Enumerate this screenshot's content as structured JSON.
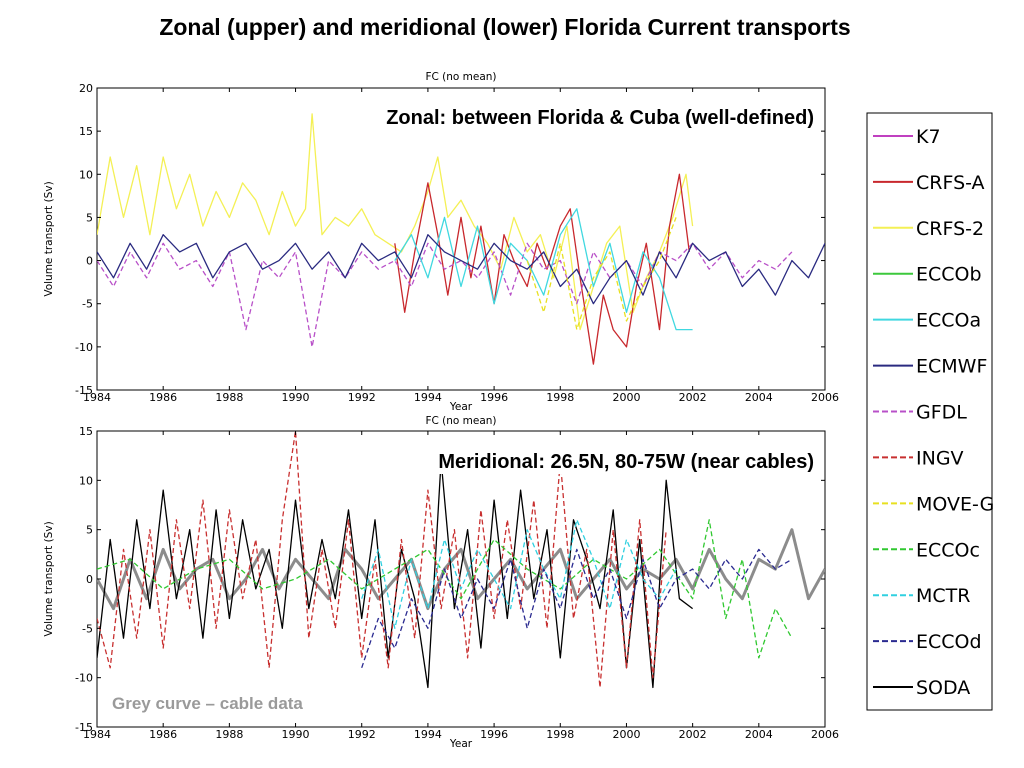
{
  "slide_title": "Zonal (upper) and meridional (lower) Florida Current transports",
  "legend": {
    "entries": [
      {
        "name": "K7",
        "color": "#c040c0",
        "dash": "solid"
      },
      {
        "name": "CRFS-A",
        "color": "#c8282d",
        "dash": "solid"
      },
      {
        "name": "CRFS-2",
        "color": "#f4f055",
        "dash": "solid"
      },
      {
        "name": "ECCOb",
        "color": "#3cc83c",
        "dash": "solid"
      },
      {
        "name": "ECCOa",
        "color": "#40d8e0",
        "dash": "solid"
      },
      {
        "name": "ECMWF",
        "color": "#2a2a80",
        "dash": "solid"
      },
      {
        "name": "GFDL",
        "color": "#b850c8",
        "dash": "dashed"
      },
      {
        "name": "INGV",
        "color": "#c83030",
        "dash": "dashed"
      },
      {
        "name": "MOVE-G",
        "color": "#e8e020",
        "dash": "dashed"
      },
      {
        "name": "ECCOc",
        "color": "#30c830",
        "dash": "dashed"
      },
      {
        "name": "MCTR",
        "color": "#30d0e0",
        "dash": "dashed"
      },
      {
        "name": "ECCOd",
        "color": "#2a2a90",
        "dash": "dashed"
      },
      {
        "name": "SODA",
        "color": "#000000",
        "dash": "solid"
      }
    ]
  },
  "chart_data": [
    {
      "type": "line",
      "title": "FC (no   mean)",
      "annotation": "Zonal: between Florida & Cuba (well-defined)",
      "xlabel": "Year",
      "ylabel": "Volume transport (Sv)",
      "xlim": [
        1984,
        2006
      ],
      "ylim": [
        -15,
        20
      ],
      "xticks": [
        "1984",
        "1986",
        "1988",
        "1990",
        "1992",
        "1994",
        "1996",
        "1998",
        "2000",
        "2002",
        "2004",
        "2006"
      ],
      "yticks": [
        "-15",
        "-10",
        "-5",
        "0",
        "5",
        "10",
        "15",
        "20"
      ],
      "grid": false,
      "series": [
        {
          "name": "CRFS-2",
          "x": [
            1984.0,
            1984.4,
            1984.8,
            1985.2,
            1985.6,
            1986.0,
            1986.4,
            1986.8,
            1987.2,
            1987.6,
            1988.0,
            1988.4,
            1988.8,
            1989.2,
            1989.6,
            1990.0,
            1990.3,
            1990.5,
            1990.8,
            1991.2,
            1991.6,
            1992.0,
            1992.4,
            1992.8,
            1993.2,
            1993.6,
            1994.0,
            1994.3,
            1994.6,
            1995.0,
            1995.4,
            1995.8,
            1996.2,
            1996.6,
            1997.0,
            1997.4,
            1997.8,
            1998.2,
            1998.6,
            1999.0,
            1999.4,
            1999.8,
            2000.2,
            2000.6,
            2001.0,
            2001.4,
            2001.8,
            2002.0
          ],
          "values": [
            3,
            12,
            5,
            11,
            3,
            12,
            6,
            10,
            4,
            8,
            5,
            9,
            7,
            3,
            8,
            4,
            6,
            17,
            3,
            5,
            4,
            6,
            3,
            2,
            1,
            4,
            8,
            12,
            5,
            7,
            4,
            2,
            -1,
            5,
            1,
            3,
            -2,
            4,
            -8,
            -3,
            2,
            4,
            -6,
            -2,
            1,
            5,
            10,
            4
          ]
        },
        {
          "name": "CRFS-A",
          "x": [
            1993.0,
            1993.3,
            1993.6,
            1994.0,
            1994.3,
            1994.6,
            1995.0,
            1995.3,
            1995.6,
            1996.0,
            1996.3,
            1996.6,
            1997.0,
            1997.3,
            1997.6,
            1998.0,
            1998.3,
            1998.6,
            1999.0,
            1999.3,
            1999.6,
            2000.0,
            2000.3,
            2000.6,
            2001.0,
            2001.3,
            2001.6,
            2001.9
          ],
          "values": [
            2,
            -6,
            1,
            9,
            3,
            -4,
            5,
            -2,
            4,
            -5,
            3,
            0,
            -3,
            2,
            -1,
            4,
            6,
            -2,
            -12,
            -4,
            -8,
            -10,
            -3,
            2,
            -8,
            4,
            10,
            1
          ]
        },
        {
          "name": "GFDL",
          "x": [
            1984.0,
            1984.5,
            1985.0,
            1985.5,
            1986.0,
            1986.5,
            1987.0,
            1987.5,
            1988.0,
            1988.5,
            1989.0,
            1989.5,
            1990.0,
            1990.5,
            1991.0,
            1991.5,
            1992.0,
            1992.5,
            1993.0,
            1993.5,
            1994.0,
            1994.5,
            1995.0,
            1995.5,
            1996.0,
            1996.5,
            1997.0,
            1997.5,
            1998.0,
            1998.5,
            1999.0,
            1999.5,
            2000.0,
            2000.5,
            2001.0,
            2001.5,
            2002.0,
            2002.5,
            2003.0,
            2003.5,
            2004.0,
            2004.5,
            2005.0
          ],
          "values": [
            0,
            -3,
            1,
            -2,
            2,
            -1,
            0,
            -3,
            1,
            -8,
            0,
            -2,
            1,
            -10,
            0,
            -2,
            1,
            -1,
            0,
            -3,
            2,
            -1,
            0,
            -2,
            1,
            -4,
            2,
            -1,
            0,
            -5,
            1,
            -2,
            0,
            -3,
            1,
            0,
            2,
            -1,
            1,
            -2,
            0,
            -1,
            1
          ]
        },
        {
          "name": "ECCOa",
          "x": [
            1993.0,
            1993.5,
            1994.0,
            1994.5,
            1995.0,
            1995.5,
            1996.0,
            1996.5,
            1997.0,
            1997.5,
            1998.0,
            1998.5,
            1999.0,
            1999.5,
            2000.0,
            2000.5,
            2001.0,
            2001.5,
            2002.0
          ],
          "values": [
            0,
            3,
            -2,
            5,
            -3,
            4,
            -5,
            2,
            0,
            -4,
            3,
            6,
            -3,
            2,
            -6,
            1,
            -2,
            -8,
            -8
          ]
        },
        {
          "name": "ECMWF",
          "x": [
            1984.0,
            1984.5,
            1985.0,
            1985.5,
            1986.0,
            1986.5,
            1987.0,
            1987.5,
            1988.0,
            1988.5,
            1989.0,
            1989.5,
            1990.0,
            1990.5,
            1991.0,
            1991.5,
            1992.0,
            1992.5,
            1993.0,
            1993.5,
            1994.0,
            1994.5,
            1995.0,
            1995.5,
            1996.0,
            1996.5,
            1997.0,
            1997.5,
            1998.0,
            1998.5,
            1999.0,
            1999.5,
            2000.0,
            2000.5,
            2001.0,
            2001.5,
            2002.0,
            2002.5,
            2003.0,
            2003.5,
            2004.0,
            2004.5,
            2005.0,
            2005.5,
            2006.0
          ],
          "values": [
            1,
            -2,
            2,
            -1,
            3,
            1,
            2,
            -2,
            1,
            2,
            -1,
            0,
            2,
            -1,
            1,
            -2,
            2,
            0,
            1,
            -2,
            3,
            1,
            0,
            -1,
            2,
            0,
            -1,
            1,
            -3,
            -1,
            -5,
            -2,
            0,
            -4,
            1,
            -2,
            2,
            0,
            1,
            -3,
            -1,
            -4,
            0,
            -2,
            2
          ]
        },
        {
          "name": "MOVE-G",
          "x": [
            1997.0,
            1997.5,
            1998.0,
            1998.5,
            1999.0,
            1999.5,
            2000.0,
            2000.5,
            2001.0,
            2001.5
          ],
          "values": [
            0,
            -6,
            2,
            -8,
            -2,
            1,
            -7,
            -3,
            0,
            5
          ]
        }
      ]
    },
    {
      "type": "line",
      "title": "FC (no   mean)",
      "annotation": "Meridional: 26.5N, 80-75W (near cables)",
      "note": "Grey curve – cable data",
      "xlabel": "Year",
      "ylabel": "Volume transport (Sv)",
      "xlim": [
        1984,
        2006
      ],
      "ylim": [
        -15,
        15
      ],
      "xticks": [
        "1984",
        "1986",
        "1988",
        "1990",
        "1992",
        "1994",
        "1996",
        "1998",
        "2000",
        "2002",
        "2004",
        "2006"
      ],
      "yticks": [
        "-15",
        "-10",
        "-5",
        "0",
        "5",
        "10",
        "15"
      ],
      "grid": false,
      "series": [
        {
          "name": "cable data",
          "x": [
            1984.0,
            1984.5,
            1985.0,
            1985.5,
            1986.0,
            1986.5,
            1987.0,
            1987.5,
            1988.0,
            1988.5,
            1989.0,
            1989.5,
            1990.0,
            1990.5,
            1991.0,
            1991.5,
            1992.0,
            1992.5,
            1993.0,
            1993.5,
            1994.0,
            1994.5,
            1995.0,
            1995.5,
            1996.0,
            1996.5,
            1997.0,
            1997.5,
            1998.0,
            1998.5,
            1999.0,
            1999.5,
            2000.0,
            2000.5,
            2001.0,
            2001.5,
            2002.0,
            2002.5,
            2003.0,
            2003.5,
            2004.0,
            2004.5,
            2005.0,
            2005.5,
            2006.0
          ],
          "values": [
            0,
            -3,
            2,
            -2,
            3,
            -1,
            1,
            2,
            -2,
            0,
            3,
            -1,
            2,
            0,
            -2,
            3,
            1,
            -2,
            0,
            2,
            -3,
            1,
            3,
            -2,
            0,
            2,
            -1,
            1,
            3,
            -2,
            0,
            2,
            -1,
            1,
            0,
            2,
            -1,
            3,
            0,
            -2,
            2,
            1,
            5,
            -2,
            1
          ]
        },
        {
          "name": "SODA",
          "x": [
            1984.0,
            1984.4,
            1984.8,
            1985.2,
            1985.6,
            1986.0,
            1986.4,
            1986.8,
            1987.2,
            1987.6,
            1988.0,
            1988.4,
            1988.8,
            1989.2,
            1989.6,
            1990.0,
            1990.4,
            1990.8,
            1991.2,
            1991.6,
            1992.0,
            1992.4,
            1992.8,
            1993.2,
            1993.6,
            1994.0,
            1994.4,
            1994.8,
            1995.2,
            1995.6,
            1996.0,
            1996.4,
            1996.8,
            1997.2,
            1997.6,
            1998.0,
            1998.4,
            1998.8,
            1999.2,
            1999.6,
            2000.0,
            2000.4,
            2000.8,
            2001.2,
            2001.6,
            2002.0
          ],
          "values": [
            -8,
            4,
            -6,
            6,
            -3,
            9,
            -2,
            5,
            -6,
            7,
            -4,
            6,
            -1,
            3,
            -5,
            8,
            -3,
            4,
            -2,
            7,
            -4,
            6,
            -8,
            3,
            -2,
            -11,
            12,
            -3,
            5,
            -7,
            8,
            -4,
            9,
            -2,
            5,
            -8,
            6,
            2,
            -3,
            7,
            -9,
            4,
            -11,
            10,
            -2,
            -3
          ]
        },
        {
          "name": "INGV",
          "x": [
            1984.0,
            1984.4,
            1984.8,
            1985.2,
            1985.6,
            1986.0,
            1986.4,
            1986.8,
            1987.2,
            1987.6,
            1988.0,
            1988.4,
            1988.8,
            1989.2,
            1989.6,
            1990.0,
            1990.4,
            1990.8,
            1991.2,
            1991.6,
            1992.0,
            1992.4,
            1992.8,
            1993.2,
            1993.6,
            1994.0,
            1994.4,
            1994.8,
            1995.2,
            1995.6,
            1996.0,
            1996.4,
            1996.8,
            1997.2,
            1997.6,
            1998.0,
            1998.4,
            1998.8,
            1999.2,
            1999.6,
            2000.0,
            2000.4,
            2000.8,
            2001.2
          ],
          "values": [
            -4,
            -9,
            3,
            -6,
            5,
            -7,
            6,
            -3,
            8,
            -5,
            7,
            -2,
            4,
            -9,
            6,
            15,
            -6,
            3,
            -5,
            6,
            -8,
            2,
            -9,
            4,
            -6,
            9,
            -3,
            5,
            -8,
            7,
            -4,
            6,
            -3,
            8,
            -5,
            12,
            -4,
            3,
            -11,
            5,
            -9,
            6,
            -10,
            5
          ]
        },
        {
          "name": "ECCOc",
          "x": [
            1984.0,
            1985.0,
            1986.0,
            1987.0,
            1988.0,
            1989.0,
            1990.0,
            1991.0,
            1992.0,
            1993.0,
            1994.0,
            1995.0,
            1996.0,
            1997.0,
            1998.0,
            1999.0,
            2000.0,
            2001.0,
            2002.0,
            2002.5,
            2003.0,
            2003.5,
            2004.0,
            2004.5,
            2005.0
          ],
          "values": [
            1,
            2,
            -1,
            1,
            2,
            -1,
            0,
            2,
            -1,
            1,
            3,
            -2,
            4,
            1,
            -1,
            2,
            0,
            3,
            -2,
            6,
            -4,
            2,
            -8,
            -3,
            -6
          ]
        },
        {
          "name": "MCTR",
          "x": [
            1992.0,
            1992.5,
            1993.0,
            1993.5,
            1994.0,
            1994.5,
            1995.0,
            1995.5,
            1996.0,
            1996.5,
            1997.0,
            1997.5,
            1998.0,
            1998.5,
            1999.0,
            1999.5,
            2000.0,
            2000.5,
            2001.0,
            2001.5
          ],
          "values": [
            -2,
            3,
            -5,
            2,
            -3,
            4,
            -1,
            3,
            0,
            -3,
            5,
            1,
            -2,
            6,
            2,
            -3,
            4,
            0,
            -2,
            1
          ]
        },
        {
          "name": "ECCOd",
          "x": [
            1992.0,
            1992.5,
            1993.0,
            1993.5,
            1994.0,
            1994.5,
            1995.0,
            1995.5,
            1996.0,
            1996.5,
            1997.0,
            1997.5,
            1998.0,
            1998.5,
            1999.0,
            1999.5,
            2000.0,
            2000.5,
            2001.0,
            2001.5,
            2002.0,
            2002.5,
            2003.0,
            2003.5,
            2004.0,
            2004.5,
            2005.0
          ],
          "values": [
            -9,
            -4,
            -7,
            -2,
            -5,
            1,
            -4,
            0,
            -3,
            2,
            -5,
            1,
            -3,
            3,
            -2,
            1,
            -4,
            2,
            -3,
            0,
            1,
            -1,
            2,
            0,
            3,
            1,
            2
          ]
        }
      ]
    }
  ]
}
